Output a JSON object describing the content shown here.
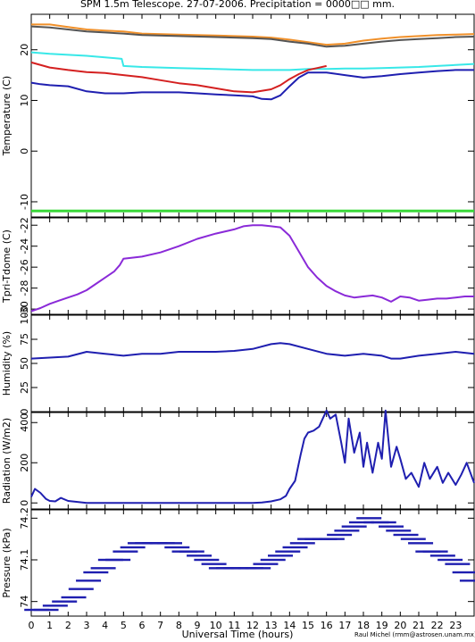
{
  "page": {
    "title": "SPM 1.5m Telescope. 27-07-2006. Precipitation = 0000□□ mm.",
    "xlabel": "Universal Time (hours)",
    "credit": "Raul Michel (rmm@astrosen.unam.mx)"
  },
  "colors": {
    "axis": "#000000",
    "blue": "#1f1fb0",
    "red": "#d42020",
    "orange": "#f0902a",
    "darkgray": "#555555",
    "cyan": "#38e8e8",
    "green": "#3ad83a",
    "purple": "#8a2ad8"
  },
  "chart_data": [
    {
      "type": "line",
      "ylabel": "Temperature (C)",
      "xlim": [
        0,
        24
      ],
      "ylim": [
        -13,
        27
      ],
      "xticks": [
        0,
        1,
        2,
        3,
        4,
        5,
        6,
        7,
        8,
        9,
        10,
        11,
        12,
        13,
        14,
        15,
        16,
        17,
        18,
        19,
        20,
        21,
        22,
        23
      ],
      "yticks": [
        -10,
        0,
        10,
        20
      ],
      "series": [
        {
          "color": "orange",
          "x": [
            0,
            1,
            2,
            3,
            4,
            5,
            6,
            8,
            10,
            12,
            13,
            14,
            15,
            16,
            17,
            18,
            19,
            20,
            21,
            22,
            23,
            24
          ],
          "y": [
            25,
            25,
            24.5,
            24,
            23.8,
            23.6,
            23.2,
            23,
            22.8,
            22.6,
            22.4,
            22,
            21.5,
            21,
            21.2,
            21.8,
            22.2,
            22.5,
            22.7,
            22.9,
            23,
            23.1
          ]
        },
        {
          "color": "darkgray",
          "x": [
            0,
            1,
            2,
            3,
            4,
            5,
            6,
            8,
            10,
            12,
            13,
            14,
            15,
            16,
            17,
            18,
            19,
            20,
            21,
            22,
            23,
            24
          ],
          "y": [
            24.6,
            24.4,
            24,
            23.6,
            23.4,
            23.2,
            22.9,
            22.7,
            22.5,
            22.3,
            22.1,
            21.6,
            21.2,
            20.6,
            20.8,
            21.2,
            21.6,
            21.9,
            22.1,
            22.3,
            22.5,
            22.6
          ]
        },
        {
          "color": "cyan",
          "x": [
            0,
            1,
            2,
            3,
            4,
            4.9,
            5,
            6,
            7,
            8,
            10,
            12,
            13,
            14,
            15,
            16,
            17,
            18,
            19,
            20,
            21,
            22,
            23,
            24
          ],
          "y": [
            19.5,
            19.2,
            19,
            18.8,
            18.5,
            18.2,
            16.8,
            16.6,
            16.5,
            16.4,
            16.2,
            16,
            16,
            16,
            16.2,
            16.2,
            16.3,
            16.3,
            16.4,
            16.5,
            16.6,
            16.8,
            17,
            17.2
          ]
        },
        {
          "color": "red",
          "x": [
            0,
            1,
            2,
            3,
            4,
            5,
            6,
            7,
            8,
            9,
            10,
            11,
            12,
            13,
            13.5,
            14,
            14.5,
            15,
            15.5,
            16
          ],
          "y": [
            17.5,
            16.5,
            16,
            15.6,
            15.4,
            15,
            14.6,
            14,
            13.4,
            13,
            12.4,
            11.8,
            11.6,
            12.2,
            13,
            14.2,
            15.2,
            16,
            16.4,
            16.8
          ]
        },
        {
          "color": "blue",
          "x": [
            0,
            0.5,
            1,
            2,
            3,
            4,
            5,
            6,
            7,
            8,
            9,
            10,
            11,
            12,
            12.5,
            13,
            13.5,
            14,
            14.5,
            15,
            16,
            17,
            18,
            19,
            20,
            21,
            22,
            23,
            24
          ],
          "y": [
            13.5,
            13.2,
            13,
            12.8,
            11.8,
            11.4,
            11.4,
            11.6,
            11.6,
            11.6,
            11.4,
            11.2,
            11,
            10.8,
            10.3,
            10.2,
            11,
            12.8,
            14.5,
            15.5,
            15.5,
            15,
            14.5,
            14.8,
            15.2,
            15.5,
            15.8,
            16,
            16
          ]
        },
        {
          "color": "green",
          "x": [
            0,
            24
          ],
          "y": [
            -11.8,
            -11.8
          ]
        }
      ]
    },
    {
      "type": "line",
      "ylabel": "Tpri-Tdome (C)",
      "xlim": [
        0,
        24
      ],
      "ylim": [
        -30.5,
        -21.3
      ],
      "yticks": [
        -30,
        -28,
        -26,
        -24,
        -22
      ],
      "series": [
        {
          "color": "purple",
          "x": [
            0,
            0.5,
            1,
            1.5,
            2,
            2.5,
            3,
            3.5,
            4,
            4.5,
            4.8,
            5,
            6,
            7,
            8,
            9,
            10,
            11,
            11.5,
            12,
            12.5,
            13,
            13.5,
            14,
            14.5,
            15,
            15.5,
            16,
            16.5,
            17,
            17.5,
            18,
            18.5,
            19,
            19.5,
            20,
            20.5,
            21,
            21.5,
            22,
            22.5,
            23,
            23.5,
            24
          ],
          "y": [
            -30.2,
            -29.9,
            -29.5,
            -29.2,
            -28.9,
            -28.6,
            -28.2,
            -27.6,
            -27,
            -26.4,
            -25.8,
            -25.2,
            -25,
            -24.6,
            -24,
            -23.3,
            -22.8,
            -22.4,
            -22.1,
            -22,
            -22,
            -22.1,
            -22.2,
            -23,
            -24.5,
            -26,
            -27,
            -27.8,
            -28.3,
            -28.7,
            -28.9,
            -28.8,
            -28.7,
            -28.9,
            -29.3,
            -28.8,
            -28.9,
            -29.2,
            -29.1,
            -29,
            -29,
            -28.9,
            -28.8,
            -28.8
          ]
        }
      ]
    },
    {
      "type": "line",
      "ylabel": "Humidity (%)",
      "xlim": [
        0,
        24
      ],
      "ylim": [
        0,
        100
      ],
      "yticks": [
        0,
        25,
        50,
        75,
        100
      ],
      "series": [
        {
          "color": "blue",
          "x": [
            0,
            1,
            2,
            3,
            4,
            5,
            6,
            7,
            8,
            9,
            10,
            11,
            12,
            13,
            13.5,
            14,
            15,
            16,
            17,
            18,
            19,
            19.5,
            20,
            21,
            22,
            23,
            24
          ],
          "y": [
            55,
            56,
            57,
            62,
            60,
            58,
            60,
            60,
            62,
            62,
            62,
            63,
            65,
            70,
            71,
            70,
            65,
            60,
            58,
            60,
            58,
            55,
            55,
            58,
            60,
            62,
            60
          ]
        }
      ]
    },
    {
      "type": "line",
      "ylabel": "Radiation (W/m2)",
      "xlim": [
        0,
        24
      ],
      "ylim": [
        -30,
        450
      ],
      "yticks": [
        0,
        200,
        400
      ],
      "series": [
        {
          "color": "blue",
          "x": [
            0,
            0.2,
            0.5,
            0.8,
            1,
            1.3,
            1.6,
            2,
            2.5,
            3,
            4,
            5,
            6,
            7,
            8,
            9,
            10,
            11,
            12,
            12.5,
            13,
            13.5,
            13.8,
            14,
            14.3,
            14.6,
            14.8,
            15,
            15.3,
            15.6,
            15.8,
            16,
            16.2,
            16.5,
            16.8,
            17,
            17.2,
            17.5,
            17.8,
            18,
            18.2,
            18.5,
            18.8,
            19,
            19.2,
            19.5,
            19.8,
            20,
            20.3,
            20.6,
            21,
            21.3,
            21.6,
            22,
            22.3,
            22.6,
            23,
            23.3,
            23.6,
            24
          ],
          "y": [
            30,
            70,
            50,
            20,
            10,
            8,
            25,
            10,
            5,
            0,
            0,
            0,
            0,
            0,
            0,
            0,
            0,
            0,
            0,
            2,
            8,
            18,
            35,
            70,
            110,
            240,
            320,
            350,
            360,
            380,
            420,
            460,
            420,
            440,
            300,
            200,
            420,
            250,
            350,
            180,
            300,
            150,
            300,
            220,
            460,
            180,
            280,
            220,
            120,
            150,
            80,
            200,
            120,
            180,
            100,
            150,
            90,
            140,
            200,
            100
          ]
        }
      ]
    },
    {
      "type": "scatter",
      "ylabel": "Pressure (kPa)",
      "xlim": [
        0,
        24
      ],
      "ylim": [
        73.965,
        74.22
      ],
      "yticks": [
        74,
        74.1,
        74.2
      ],
      "xticks": [
        0,
        1,
        2,
        3,
        4,
        5,
        6,
        7,
        8,
        9,
        10,
        11,
        12,
        13,
        14,
        15,
        16,
        17,
        18,
        19,
        20,
        21,
        22,
        23
      ],
      "series": [
        {
          "color": "blue",
          "x": [
            0.3,
            0.8,
            1.3,
            1.8,
            2.3,
            2.7,
            3.1,
            3.5,
            3.9,
            4.3,
            4.7,
            5.1,
            5.5,
            5.9,
            6.3,
            6.7,
            7.1,
            7.5,
            7.9,
            8.3,
            8.7,
            9.1,
            9.5,
            9.9,
            10.3,
            10.7,
            11.1,
            11.5,
            11.9,
            12.3,
            12.7,
            13.1,
            13.5,
            13.9,
            14.3,
            14.7,
            15.1,
            15.5,
            15.9,
            16.3,
            16.7,
            17.1,
            17.5,
            17.9,
            18.3,
            18.7,
            19.1,
            19.5,
            19.9,
            20.3,
            20.7,
            21.1,
            21.5,
            21.9,
            22.3,
            22.7,
            23.1,
            23.5,
            23.9
          ],
          "y": [
            73.98,
            73.98,
            73.99,
            74.0,
            74.01,
            74.03,
            74.05,
            74.07,
            74.08,
            74.1,
            74.1,
            74.12,
            74.13,
            74.14,
            74.14,
            74.14,
            74.14,
            74.14,
            74.13,
            74.12,
            74.12,
            74.11,
            74.1,
            74.09,
            74.08,
            74.08,
            74.08,
            74.08,
            74.08,
            74.08,
            74.09,
            74.1,
            74.11,
            74.12,
            74.13,
            74.14,
            74.15,
            74.15,
            74.15,
            74.15,
            74.16,
            74.17,
            74.18,
            74.19,
            74.2,
            74.19,
            74.19,
            74.18,
            74.17,
            74.16,
            74.15,
            74.14,
            74.12,
            74.12,
            74.11,
            74.1,
            74.09,
            74.07,
            74.05
          ]
        }
      ]
    }
  ]
}
